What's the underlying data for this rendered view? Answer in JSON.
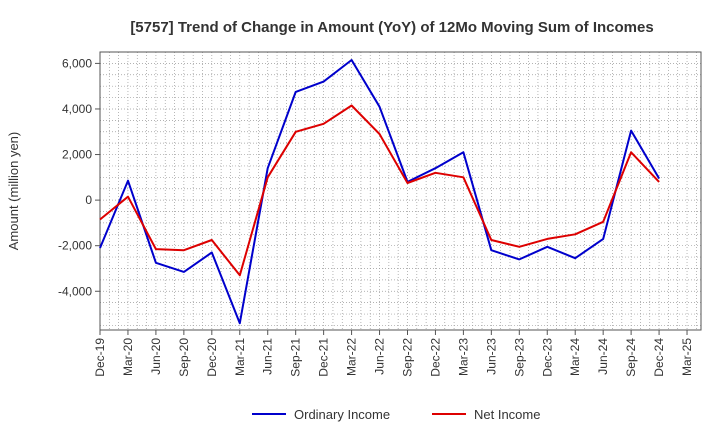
{
  "chart_data": {
    "type": "line",
    "title": "[5757]  Trend of Change in Amount (YoY) of 12Mo Moving Sum of Incomes",
    "ylabel": "Amount (million yen)",
    "xlabel": "",
    "ylim": [
      -5700,
      6500
    ],
    "yticks": [
      -4000,
      -2000,
      0,
      2000,
      4000,
      6000
    ],
    "ytick_labels": [
      "-4,000",
      "-2,000",
      "0",
      "2,000",
      "4,000",
      "6,000"
    ],
    "x_tick_labels": [
      "Dec-19",
      "Mar-20",
      "Jun-20",
      "Sep-20",
      "Dec-20",
      "Mar-21",
      "Jun-21",
      "Sep-21",
      "Dec-21",
      "Mar-22",
      "Jun-22",
      "Sep-22",
      "Dec-22",
      "Mar-23",
      "Jun-23",
      "Sep-23",
      "Dec-23",
      "Mar-24",
      "Jun-24",
      "Sep-24",
      "Dec-24",
      "Mar-25"
    ],
    "grid": true,
    "legend_position": "bottom-center",
    "series": [
      {
        "name": "Ordinary Income",
        "color": "#0000cc",
        "values": [
          -2100,
          850,
          -2750,
          -3150,
          -2300,
          -5400,
          1400,
          4750,
          5200,
          6150,
          4100,
          800,
          1400,
          2100,
          -2200,
          -2600,
          -2050,
          -2550,
          -1700,
          3050,
          950,
          null
        ]
      },
      {
        "name": "Net Income",
        "color": "#dd0000",
        "values": [
          -850,
          150,
          -2150,
          -2200,
          -1750,
          -3300,
          1000,
          3000,
          3350,
          4150,
          2900,
          750,
          1200,
          1000,
          -1750,
          -2050,
          -1700,
          -1500,
          -950,
          2100,
          800,
          null
        ]
      }
    ]
  }
}
